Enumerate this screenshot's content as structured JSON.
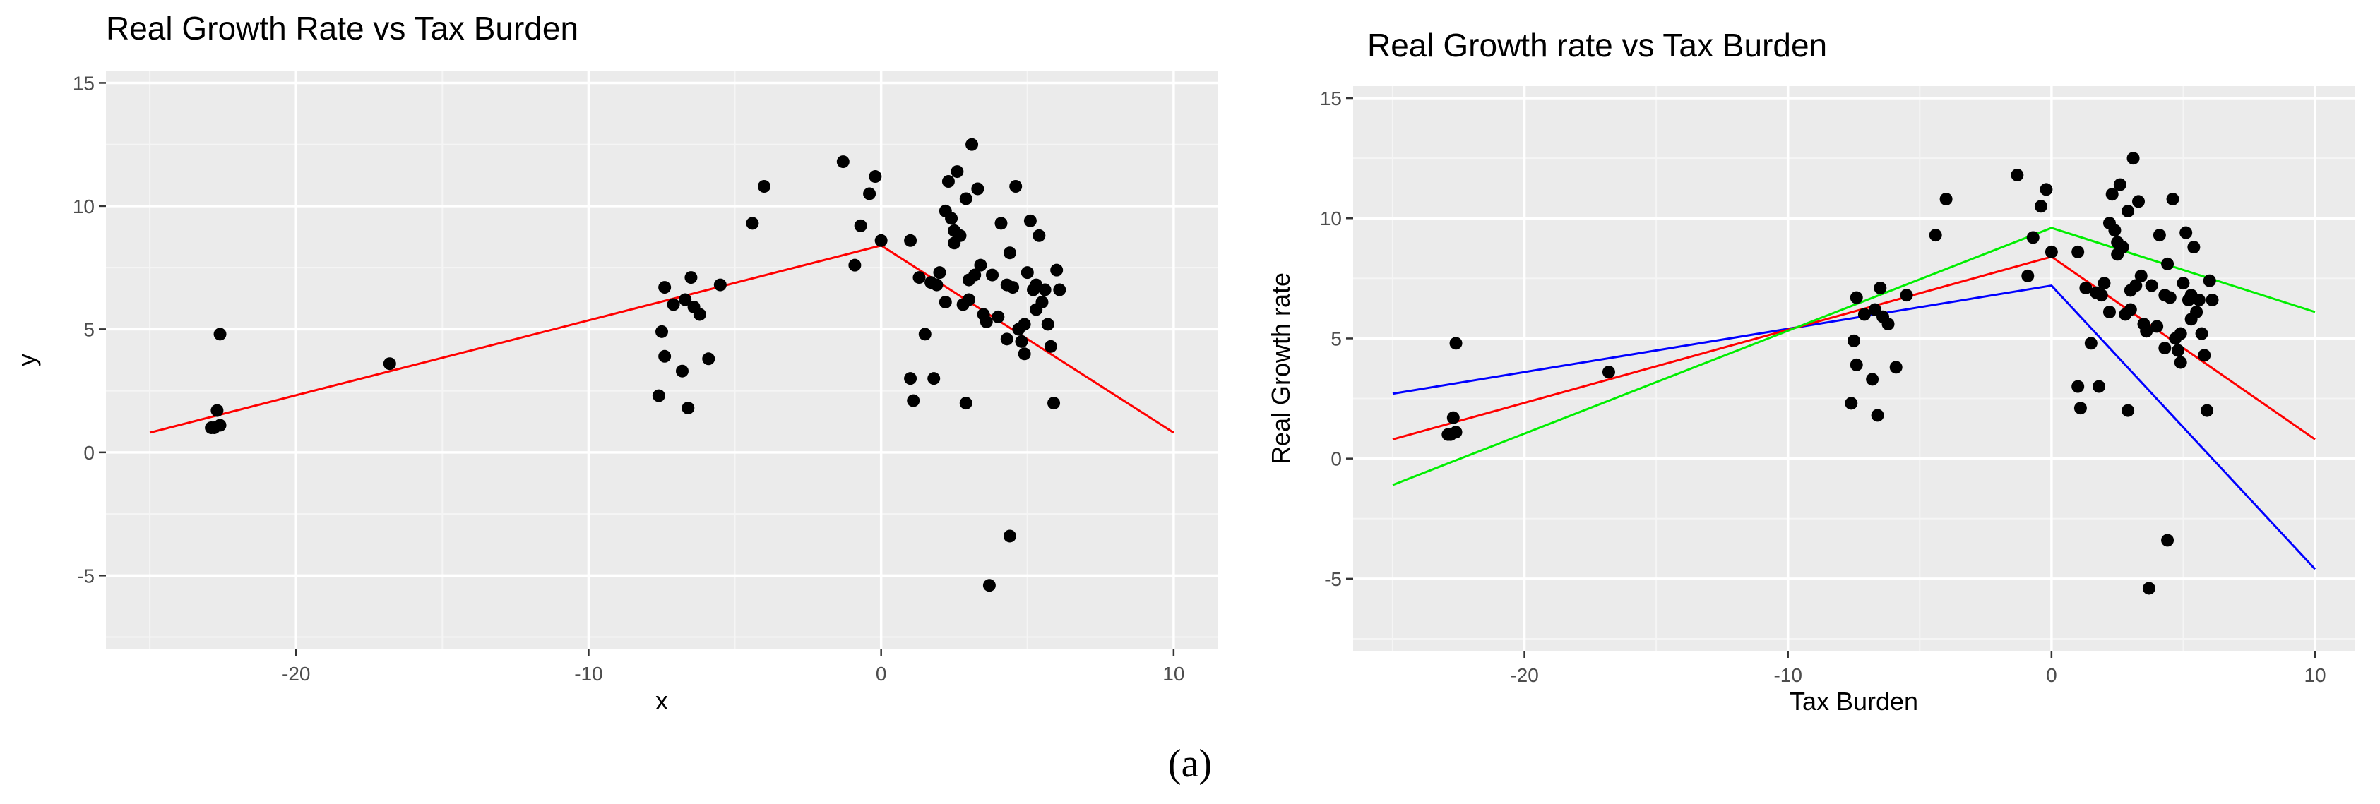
{
  "caption": "(a)",
  "chart_data": [
    {
      "type": "scatter",
      "title": "Real Growth Rate vs Tax Burden",
      "xlabel": "x",
      "ylabel": "y",
      "xlim": [
        -26.5,
        11.5
      ],
      "ylim": [
        -8,
        15.5
      ],
      "x_ticks": [
        -20,
        -10,
        0,
        10
      ],
      "x_tick_labels": [
        "-20",
        "-10",
        "0",
        "10"
      ],
      "y_ticks": [
        -5,
        0,
        5,
        10,
        15
      ],
      "y_tick_labels": [
        "-5",
        "0",
        "5",
        "10",
        "15"
      ],
      "grid": true,
      "points": {
        "x": [
          -22.8,
          -22.6,
          -22.9,
          -22.7,
          -22.6,
          -16.8,
          -7.6,
          -7.4,
          -7.4,
          -7.1,
          -6.8,
          -6.6,
          -6.5,
          -6.4,
          -6.2,
          -5.9,
          -5.5,
          -7.5,
          -6.7,
          -4.4,
          -4.0,
          -1.3,
          -0.9,
          -0.7,
          -0.4,
          -0.2,
          0.0,
          1.0,
          1.0,
          1.1,
          1.3,
          1.5,
          1.7,
          1.9,
          2.0,
          2.2,
          2.3,
          2.4,
          2.5,
          2.6,
          2.7,
          2.8,
          2.9,
          3.0,
          3.1,
          3.2,
          3.3,
          3.4,
          3.5,
          3.6,
          2.2,
          2.5,
          3.0,
          3.8,
          4.0,
          4.1,
          4.3,
          4.4,
          4.5,
          4.6,
          4.7,
          4.8,
          4.9,
          5.0,
          5.1,
          5.2,
          5.3,
          5.4,
          5.5,
          5.6,
          5.7,
          5.8,
          6.0,
          6.1,
          4.4,
          3.7,
          5.9,
          2.9,
          4.3,
          4.9,
          1.8,
          5.3
        ],
        "y": [
          1.0,
          1.1,
          1.0,
          1.7,
          4.8,
          3.6,
          2.3,
          3.9,
          6.7,
          6.0,
          3.3,
          1.8,
          7.1,
          5.9,
          5.6,
          3.8,
          6.8,
          4.9,
          6.2,
          9.3,
          10.8,
          11.8,
          7.6,
          9.2,
          10.5,
          11.2,
          8.6,
          8.6,
          3.0,
          2.1,
          7.1,
          4.8,
          6.9,
          6.8,
          7.3,
          6.1,
          11.0,
          9.5,
          8.5,
          11.4,
          8.8,
          6.0,
          10.3,
          7.0,
          12.5,
          7.2,
          10.7,
          7.6,
          5.6,
          5.3,
          9.8,
          9.0,
          6.2,
          7.2,
          5.5,
          9.3,
          6.8,
          8.1,
          6.7,
          10.8,
          5.0,
          4.5,
          4.0,
          7.3,
          9.4,
          6.6,
          5.8,
          8.8,
          6.1,
          6.6,
          5.2,
          4.3,
          7.4,
          6.6,
          -3.4,
          -5.4,
          2.0,
          2.0,
          4.6,
          5.2,
          3.0,
          6.8
        ]
      },
      "series": [
        {
          "name": "fit",
          "color": "#ff0000",
          "x": [
            -25,
            0,
            10
          ],
          "y": [
            0.8,
            8.4,
            0.8
          ]
        }
      ]
    },
    {
      "type": "scatter",
      "title": "Real Growth rate vs Tax Burden",
      "xlabel": "Tax Burden",
      "ylabel": "Real Growth rate",
      "xlim": [
        -26.5,
        11.5
      ],
      "ylim": [
        -8,
        15.5
      ],
      "x_ticks": [
        -20,
        -10,
        0,
        10
      ],
      "x_tick_labels": [
        "-20",
        "-10",
        "0",
        "10"
      ],
      "y_ticks": [
        -5,
        0,
        5,
        10,
        15
      ],
      "y_tick_labels": [
        "-5",
        "0",
        "5",
        "10",
        "15"
      ],
      "grid": true,
      "points": {
        "x": [
          -22.8,
          -22.6,
          -22.9,
          -22.7,
          -22.6,
          -16.8,
          -7.6,
          -7.4,
          -7.4,
          -7.1,
          -6.8,
          -6.6,
          -6.5,
          -6.4,
          -6.2,
          -5.9,
          -5.5,
          -7.5,
          -6.7,
          -4.4,
          -4.0,
          -1.3,
          -0.9,
          -0.7,
          -0.4,
          -0.2,
          0.0,
          1.0,
          1.0,
          1.1,
          1.3,
          1.5,
          1.7,
          1.9,
          2.0,
          2.2,
          2.3,
          2.4,
          2.5,
          2.6,
          2.7,
          2.8,
          2.9,
          3.0,
          3.1,
          3.2,
          3.3,
          3.4,
          3.5,
          3.6,
          2.2,
          2.5,
          3.0,
          3.8,
          4.0,
          4.1,
          4.3,
          4.4,
          4.5,
          4.6,
          4.7,
          4.8,
          4.9,
          5.0,
          5.1,
          5.2,
          5.3,
          5.4,
          5.5,
          5.6,
          5.7,
          5.8,
          6.0,
          6.1,
          4.4,
          3.7,
          5.9,
          2.9,
          4.3,
          4.9,
          1.8,
          5.3
        ],
        "y": [
          1.0,
          1.1,
          1.0,
          1.7,
          4.8,
          3.6,
          2.3,
          3.9,
          6.7,
          6.0,
          3.3,
          1.8,
          7.1,
          5.9,
          5.6,
          3.8,
          6.8,
          4.9,
          6.2,
          9.3,
          10.8,
          11.8,
          7.6,
          9.2,
          10.5,
          11.2,
          8.6,
          8.6,
          3.0,
          2.1,
          7.1,
          4.8,
          6.9,
          6.8,
          7.3,
          6.1,
          11.0,
          9.5,
          8.5,
          11.4,
          8.8,
          6.0,
          10.3,
          7.0,
          12.5,
          7.2,
          10.7,
          7.6,
          5.6,
          5.3,
          9.8,
          9.0,
          6.2,
          7.2,
          5.5,
          9.3,
          6.8,
          8.1,
          6.7,
          10.8,
          5.0,
          4.5,
          4.0,
          7.3,
          9.4,
          6.6,
          5.8,
          8.8,
          6.1,
          6.6,
          5.2,
          4.3,
          7.4,
          6.6,
          -3.4,
          -5.4,
          2.0,
          2.0,
          4.6,
          5.2,
          3.0,
          6.8
        ]
      },
      "series": [
        {
          "name": "blue",
          "color": "#0000ff",
          "x": [
            -25,
            0,
            10
          ],
          "y": [
            2.7,
            7.2,
            -4.6
          ]
        },
        {
          "name": "red",
          "color": "#ff0000",
          "x": [
            -25,
            0,
            10
          ],
          "y": [
            0.8,
            8.4,
            0.8
          ]
        },
        {
          "name": "green",
          "color": "#00ee00",
          "x": [
            -25,
            0,
            10
          ],
          "y": [
            -1.1,
            9.6,
            6.1
          ]
        }
      ]
    }
  ]
}
